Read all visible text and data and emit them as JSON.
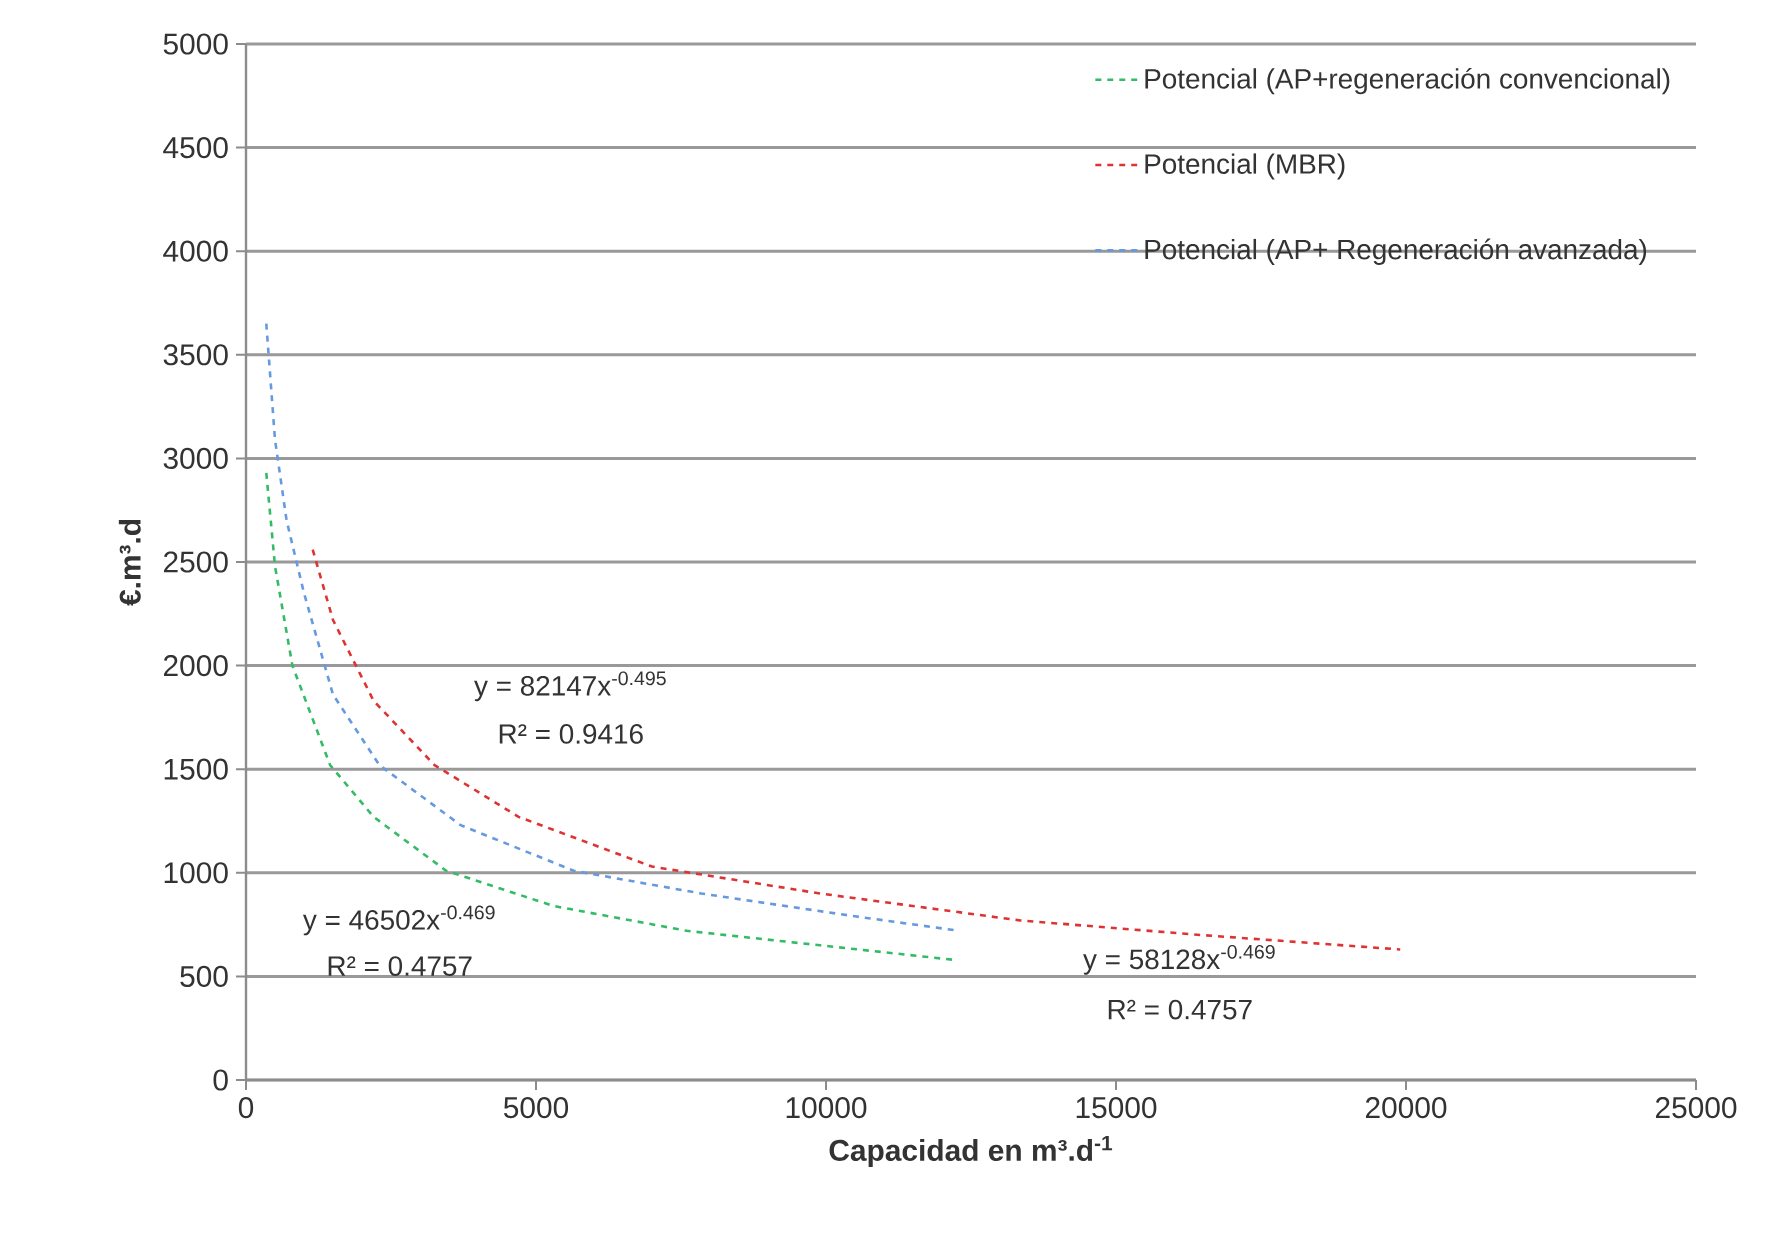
{
  "chart_data": {
    "type": "line",
    "xlabel": "**Capacidad en m³.d$^{-1}$**",
    "ylabel": "**€.m³.d**",
    "xlim": [
      0,
      25000
    ],
    "xticks": [
      0,
      5000,
      10000,
      15000,
      20000,
      25000
    ],
    "ylim": [
      0,
      5000
    ],
    "yticks": [
      0,
      500,
      1000,
      1500,
      2000,
      2500,
      3000,
      3500,
      4000,
      4500,
      5000
    ],
    "grid": "y",
    "legend": "top right",
    "line_style": "dashed",
    "series": [
      {
        "name": "Potencial (AP+regeneración convencional)",
        "color": "#33bb66",
        "x": [
          350,
          500,
          800,
          1450,
          2200,
          3450,
          5300,
          7600,
          9900,
          12200
        ],
        "values": [
          2930,
          2480,
          2000,
          1520,
          1270,
          1010,
          840,
          720,
          650,
          580
        ]
      },
      {
        "name": "Potencial (MBR)",
        "color": "#dd3333",
        "x": [
          1150,
          1500,
          2200,
          3250,
          4700,
          7000,
          9900,
          13350,
          16450,
          19900
        ],
        "values": [
          2560,
          2220,
          1830,
          1520,
          1270,
          1030,
          900,
          770,
          700,
          630
        ]
      },
      {
        "name": "Potencial (AP+ Regeneración avanzada)",
        "color": "#6699dd",
        "x": [
          350,
          500,
          700,
          1000,
          1500,
          2300,
          3700,
          5650,
          7850,
          10500,
          12300
        ],
        "values": [
          3650,
          3090,
          2700,
          2350,
          1860,
          1520,
          1230,
          1010,
          900,
          790,
          720
        ]
      }
    ],
    "annotations": [
      "y = 82147x$^{-0.495}$",
      "R² = 0.9416",
      "y = 46502x$^{-0.469}$",
      "R² = 0.4757",
      "y = 58128x$^{-0.469}$",
      "R² = 0.4757"
    ]
  }
}
